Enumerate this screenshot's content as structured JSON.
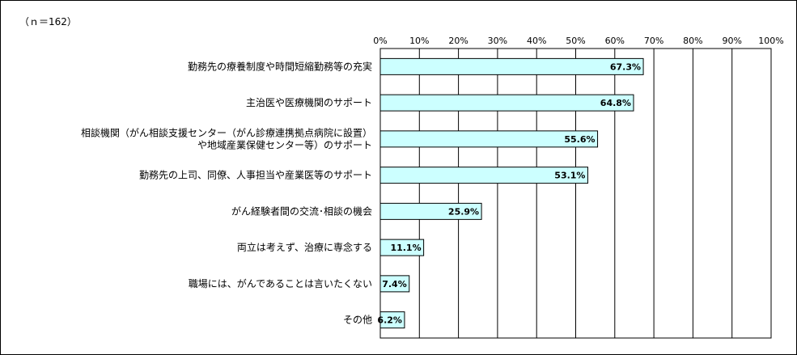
{
  "note": "（ｎ＝162）",
  "chart_data": {
    "type": "bar",
    "orientation": "horizontal",
    "categories": [
      [
        "勤務先の療養制度や時間短縮勤務等の充実"
      ],
      [
        "主治医や医療機関のサポート"
      ],
      [
        "相談機関（がん相談支援センター（がん診療連携拠点病院に設置）",
        "や地域産業保健センター等）のサポート"
      ],
      [
        "勤務先の上司、同僚、人事担当や産業医等のサポート"
      ],
      [
        "がん経験者間の交流･相談の機会"
      ],
      [
        "両立は考えず、治療に専念する"
      ],
      [
        "職場には、がんであることは言いたくない"
      ],
      [
        "その他"
      ]
    ],
    "values": [
      67.3,
      64.8,
      55.6,
      53.1,
      25.9,
      11.1,
      7.4,
      6.2
    ],
    "value_labels": [
      "67.3%",
      "64.8%",
      "55.6%",
      "53.1%",
      "25.9%",
      "11.1%",
      "7.4%",
      "6.2%"
    ],
    "xlim": [
      0,
      100
    ],
    "ticks": [
      "0%",
      "10%",
      "20%",
      "30%",
      "40%",
      "50%",
      "60%",
      "70%",
      "80%",
      "90%",
      "100%"
    ],
    "grid": true,
    "bar_color": "#ccffff",
    "bar_border_color": "#000000"
  }
}
